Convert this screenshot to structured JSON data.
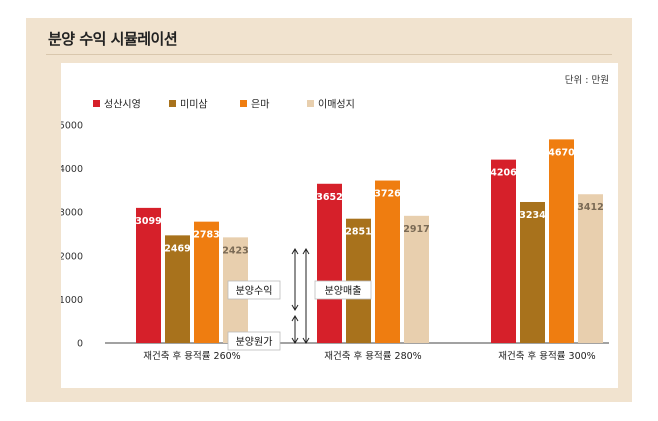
{
  "header": {
    "title": "분양 수익 시뮬레이션"
  },
  "colors": {
    "series": [
      "#d6202a",
      "#a8721c",
      "#ef7d10",
      "#e8cfae"
    ],
    "label_light": "#ffffff",
    "label_dark": "#7a6a55"
  },
  "chart_data": {
    "type": "bar",
    "title": "분양 수익 시뮬레이션",
    "unit_note": "단위 : 만원",
    "xlabel": "",
    "ylabel": "",
    "ylim": [
      0,
      5000
    ],
    "yticks": [
      "0",
      "1000",
      "2000",
      "3000",
      "4000",
      "5000"
    ],
    "ytick_values": [
      0,
      1000,
      2000,
      3000,
      4000,
      5000
    ],
    "grid": false,
    "legend_position": "top-left",
    "categories": [
      "재건축 후 용적률 260%",
      "재건축 후 용적률 280%",
      "재건축 후 용적률 300%"
    ],
    "series": [
      {
        "name": "성산시영",
        "values": [
          3099,
          3652,
          4206
        ]
      },
      {
        "name": "미미삼",
        "values": [
          2469,
          2851,
          3234
        ]
      },
      {
        "name": "은마",
        "values": [
          2783,
          3726,
          4670
        ]
      },
      {
        "name": "이매성지",
        "values": [
          2423,
          2917,
          3412
        ]
      }
    ],
    "annotations": {
      "profit": "분양수익",
      "revenue": "분양매출",
      "cost": "분양원가"
    }
  }
}
